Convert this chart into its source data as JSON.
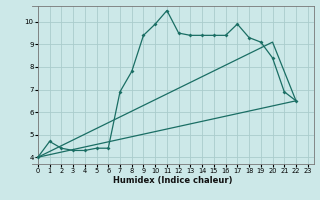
{
  "xlabel": "Humidex (Indice chaleur)",
  "bg_color": "#cce8e8",
  "grid_color": "#aacccc",
  "line_color": "#1a6e64",
  "xlim": [
    -0.5,
    23.5
  ],
  "ylim": [
    3.7,
    10.7
  ],
  "yticks": [
    4,
    5,
    6,
    7,
    8,
    9,
    10
  ],
  "xticks": [
    0,
    1,
    2,
    3,
    4,
    5,
    6,
    7,
    8,
    9,
    10,
    11,
    12,
    13,
    14,
    15,
    16,
    17,
    18,
    19,
    20,
    21,
    22,
    23
  ],
  "line1_x": [
    0,
    1,
    2,
    3,
    4,
    5,
    6,
    7,
    8,
    9,
    10,
    11,
    12,
    13,
    14,
    15,
    16,
    17,
    18,
    19,
    20,
    21,
    22
  ],
  "line1_y": [
    4.0,
    4.7,
    4.4,
    4.3,
    4.3,
    4.4,
    4.4,
    6.9,
    7.8,
    9.4,
    9.9,
    10.5,
    9.5,
    9.4,
    9.4,
    9.4,
    9.4,
    9.9,
    9.3,
    9.1,
    8.4,
    6.9,
    6.5
  ],
  "line2_x": [
    0,
    20,
    22
  ],
  "line2_y": [
    4.0,
    9.1,
    6.5
  ],
  "line3_x": [
    0,
    22
  ],
  "line3_y": [
    4.0,
    6.5
  ],
  "figw": 3.2,
  "figh": 2.0,
  "dpi": 100
}
